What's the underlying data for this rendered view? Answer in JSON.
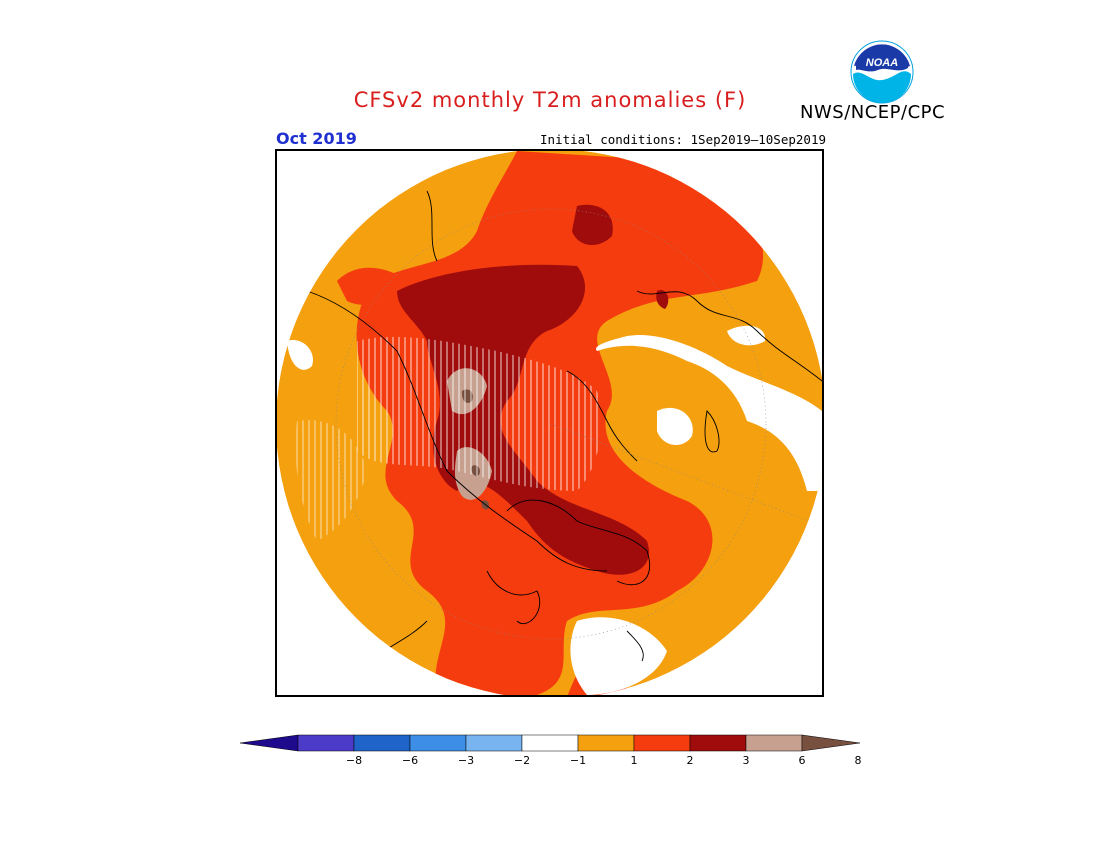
{
  "header": {
    "title": "CFSv2 monthly T2m anomalies (F)",
    "agency": "NWS/NCEP/CPC",
    "logo_text": "NOAA",
    "month": "Oct 2019",
    "initial_conditions": "Initial conditions: 1Sep2019—10Sep2019"
  },
  "legend": {
    "labels": [
      "−8",
      "−6",
      "−3",
      "−2",
      "−1",
      "1",
      "2",
      "3",
      "6",
      "8"
    ],
    "colors": [
      "#1e0a8c",
      "#4b3bc8",
      "#1f64c8",
      "#3d8ee6",
      "#78b4f0",
      "#ffffff",
      "#f5a00f",
      "#f53c0f",
      "#a00c0c",
      "#c8a090",
      "#785040"
    ]
  },
  "colors": {
    "title": "#d81e1e",
    "month": "#1f2fd0",
    "anomaly_1_2": "#f5a00f",
    "anomaly_2_3": "#f53c0f",
    "anomaly_3_6": "#a00c0c",
    "anomaly_6_8": "#c8a090",
    "anomaly_gt_8": "#785040"
  }
}
